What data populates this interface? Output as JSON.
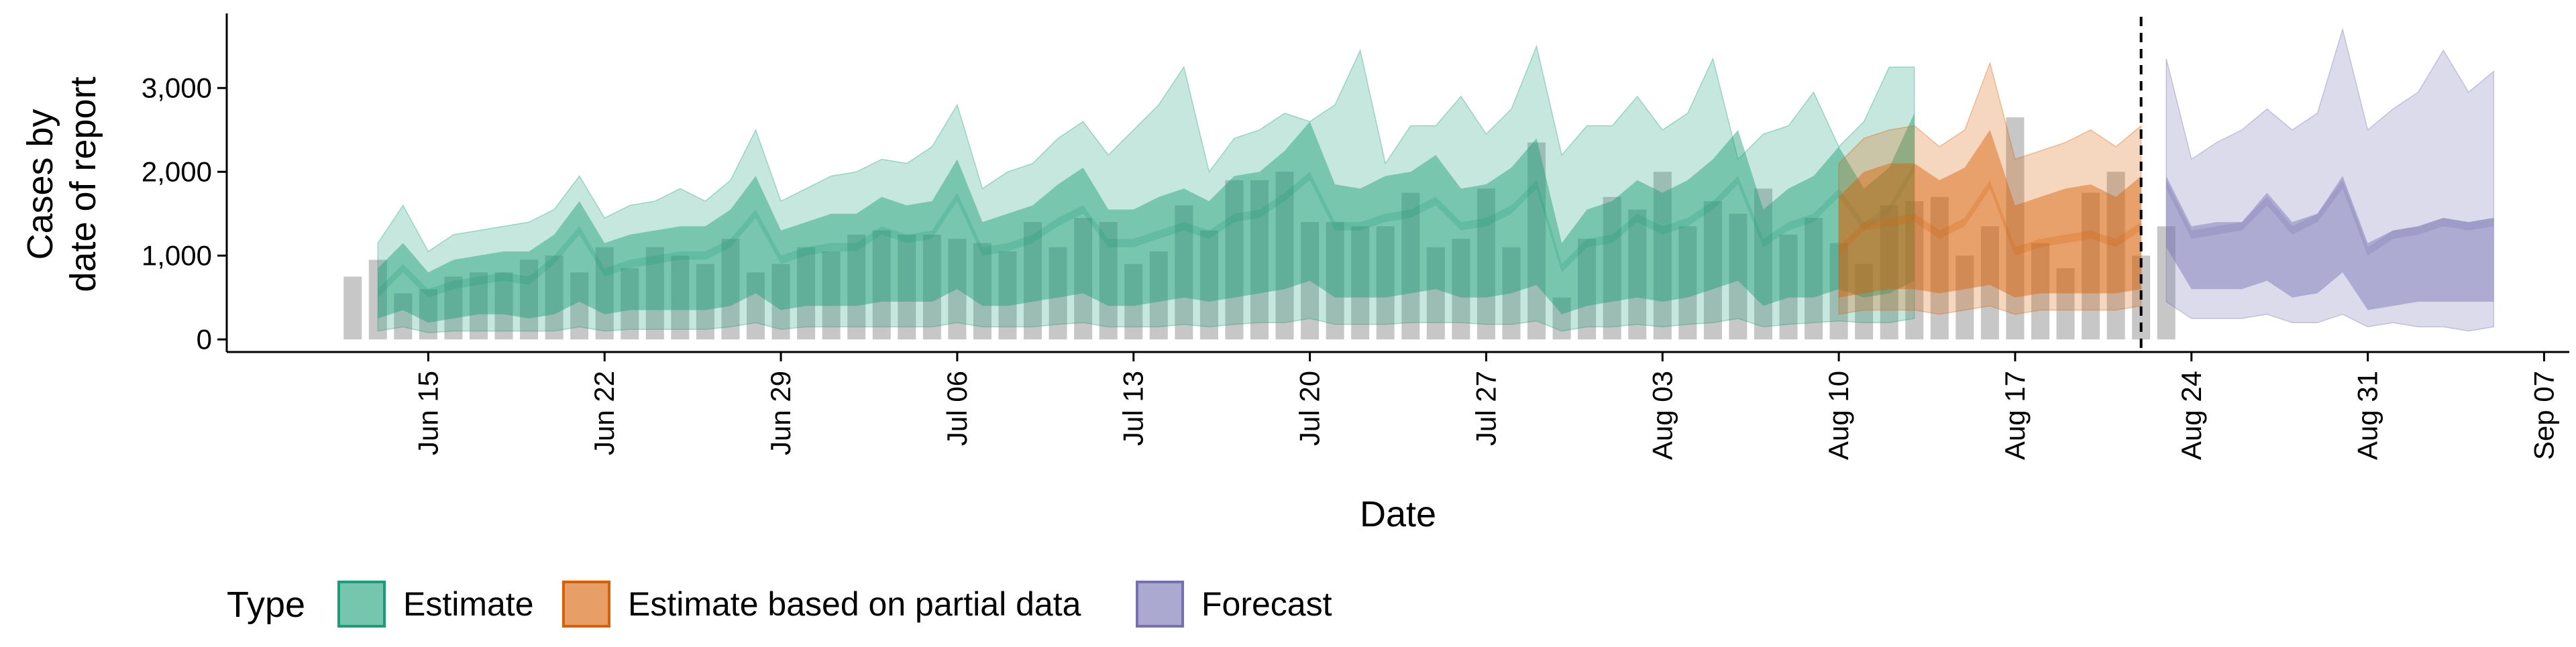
{
  "chart_data": {
    "type": "area",
    "xlabel": "Date",
    "ylabel_lines": [
      "Cases by",
      "date of report"
    ],
    "x_start": "2020-06-12",
    "y_ticks": [
      0,
      1000,
      2000,
      3000
    ],
    "y_tick_labels": [
      "0",
      "1,000",
      "2,000",
      "3,000"
    ],
    "ylim": [
      -150,
      3850
    ],
    "xlim": [
      "2020-06-07",
      "2020-09-08"
    ],
    "x_tick_labels": [
      "Jun 15",
      "Jun 22",
      "Jun 29",
      "Jul 06",
      "Jul 13",
      "Jul 20",
      "Jul 27",
      "Aug 03",
      "Aug 10",
      "Aug 17",
      "Aug 24",
      "Aug 31",
      "Sep 07"
    ],
    "x_tick_dates": [
      "2020-06-15",
      "2020-06-22",
      "2020-06-29",
      "2020-07-06",
      "2020-07-13",
      "2020-07-20",
      "2020-07-27",
      "2020-08-03",
      "2020-08-10",
      "2020-08-17",
      "2020-08-24",
      "2020-08-31",
      "2020-09-07"
    ],
    "vline_date": "2020-08-22",
    "bars": [
      750,
      950,
      550,
      600,
      750,
      800,
      800,
      950,
      1000,
      800,
      1100,
      850,
      1100,
      1000,
      900,
      1200,
      800,
      900,
      1100,
      1050,
      1250,
      1300,
      1250,
      1250,
      1200,
      1150,
      1050,
      1400,
      1100,
      1450,
      1400,
      900,
      1050,
      1600,
      1300,
      1900,
      1900,
      2000,
      1400,
      1400,
      1350,
      1350,
      1750,
      1100,
      1200,
      1800,
      1100,
      2350,
      500,
      1200,
      1700,
      1550,
      2000,
      1350,
      1650,
      1500,
      1800,
      1250,
      1450,
      1150,
      900,
      1600,
      1650,
      1700,
      1000,
      1350,
      2650,
      1150,
      850,
      1750,
      2000,
      1000,
      1350
    ],
    "series": [
      {
        "name": "Estimate",
        "color": "#1b9e77",
        "start": "2020-06-13",
        "median": [
          600,
          900,
          600,
          700,
          750,
          800,
          750,
          1000,
          1350,
          850,
          950,
          1000,
          1050,
          1050,
          1200,
          1550,
          1000,
          1100,
          1150,
          1150,
          1350,
          1250,
          1300,
          1750,
          1100,
          1150,
          1250,
          1450,
          1600,
          1200,
          1200,
          1300,
          1400,
          1300,
          1500,
          1550,
          1750,
          2000,
          1400,
          1400,
          1500,
          1550,
          1700,
          1400,
          1450,
          1600,
          1900,
          900,
          1200,
          1250,
          1500,
          1350,
          1450,
          1650,
          1950,
          1200,
          1400,
          1500,
          1800,
          1400,
          1600,
          2100
        ],
        "inner": [
          [
            250,
            850
          ],
          [
            350,
            1150
          ],
          [
            200,
            800
          ],
          [
            250,
            950
          ],
          [
            300,
            1000
          ],
          [
            300,
            1050
          ],
          [
            250,
            1050
          ],
          [
            300,
            1250
          ],
          [
            450,
            1650
          ],
          [
            300,
            1150
          ],
          [
            350,
            1250
          ],
          [
            350,
            1300
          ],
          [
            350,
            1350
          ],
          [
            350,
            1350
          ],
          [
            400,
            1550
          ],
          [
            550,
            1950
          ],
          [
            350,
            1300
          ],
          [
            400,
            1400
          ],
          [
            400,
            1500
          ],
          [
            400,
            1500
          ],
          [
            450,
            1700
          ],
          [
            450,
            1600
          ],
          [
            450,
            1650
          ],
          [
            600,
            2150
          ],
          [
            400,
            1400
          ],
          [
            400,
            1500
          ],
          [
            450,
            1600
          ],
          [
            500,
            1850
          ],
          [
            550,
            2050
          ],
          [
            400,
            1550
          ],
          [
            400,
            1550
          ],
          [
            450,
            1700
          ],
          [
            500,
            1800
          ],
          [
            450,
            1650
          ],
          [
            500,
            1950
          ],
          [
            550,
            2000
          ],
          [
            600,
            2250
          ],
          [
            700,
            2600
          ],
          [
            500,
            1850
          ],
          [
            500,
            1800
          ],
          [
            500,
            1950
          ],
          [
            550,
            2000
          ],
          [
            600,
            2200
          ],
          [
            500,
            1800
          ],
          [
            500,
            1850
          ],
          [
            550,
            2050
          ],
          [
            650,
            2400
          ],
          [
            300,
            1150
          ],
          [
            400,
            1550
          ],
          [
            450,
            1650
          ],
          [
            500,
            1900
          ],
          [
            450,
            1750
          ],
          [
            500,
            1900
          ],
          [
            600,
            2150
          ],
          [
            700,
            2500
          ],
          [
            400,
            1550
          ],
          [
            500,
            1800
          ],
          [
            500,
            1950
          ],
          [
            600,
            2300
          ],
          [
            500,
            1800
          ],
          [
            550,
            2050
          ],
          [
            700,
            2700
          ]
        ],
        "outer": [
          [
            100,
            1150
          ],
          [
            150,
            1600
          ],
          [
            80,
            1050
          ],
          [
            100,
            1250
          ],
          [
            100,
            1300
          ],
          [
            100,
            1350
          ],
          [
            100,
            1400
          ],
          [
            100,
            1550
          ],
          [
            150,
            1950
          ],
          [
            100,
            1450
          ],
          [
            120,
            1600
          ],
          [
            120,
            1650
          ],
          [
            120,
            1800
          ],
          [
            120,
            1650
          ],
          [
            150,
            1900
          ],
          [
            200,
            2500
          ],
          [
            120,
            1650
          ],
          [
            150,
            1800
          ],
          [
            150,
            1950
          ],
          [
            150,
            2000
          ],
          [
            150,
            2150
          ],
          [
            150,
            2100
          ],
          [
            150,
            2300
          ],
          [
            200,
            2800
          ],
          [
            150,
            1800
          ],
          [
            150,
            2000
          ],
          [
            150,
            2100
          ],
          [
            180,
            2400
          ],
          [
            200,
            2600
          ],
          [
            150,
            2200
          ],
          [
            150,
            2500
          ],
          [
            150,
            2800
          ],
          [
            180,
            3250
          ],
          [
            150,
            2000
          ],
          [
            180,
            2400
          ],
          [
            200,
            2500
          ],
          [
            200,
            2700
          ],
          [
            250,
            2600
          ],
          [
            180,
            2800
          ],
          [
            180,
            3450
          ],
          [
            180,
            2100
          ],
          [
            200,
            2550
          ],
          [
            200,
            2550
          ],
          [
            200,
            2900
          ],
          [
            180,
            2450
          ],
          [
            180,
            2750
          ],
          [
            220,
            3500
          ],
          [
            100,
            2200
          ],
          [
            150,
            2550
          ],
          [
            150,
            2550
          ],
          [
            180,
            2900
          ],
          [
            150,
            2500
          ],
          [
            180,
            2700
          ],
          [
            200,
            3350
          ],
          [
            250,
            2150
          ],
          [
            150,
            2450
          ],
          [
            180,
            2550
          ],
          [
            200,
            2950
          ],
          [
            220,
            2300
          ],
          [
            200,
            2600
          ],
          [
            200,
            3250
          ],
          [
            250,
            3250
          ]
        ]
      },
      {
        "name": "Estimate based on partial data",
        "color": "#d95f02",
        "start": "2020-08-10",
        "median": [
          1100,
          1400,
          1450,
          1500,
          1300,
          1450,
          1900,
          1100,
          1200,
          1250,
          1300,
          1200,
          1400
        ],
        "inner": [
          [
            500,
            1700
          ],
          [
            550,
            2000
          ],
          [
            600,
            2100
          ],
          [
            600,
            2100
          ],
          [
            550,
            1900
          ],
          [
            600,
            2050
          ],
          [
            650,
            2500
          ],
          [
            500,
            1600
          ],
          [
            550,
            1700
          ],
          [
            550,
            1800
          ],
          [
            550,
            1850
          ],
          [
            550,
            1700
          ],
          [
            600,
            1950
          ]
        ],
        "outer": [
          [
            300,
            2100
          ],
          [
            350,
            2400
          ],
          [
            350,
            2500
          ],
          [
            350,
            2550
          ],
          [
            300,
            2300
          ],
          [
            350,
            2500
          ],
          [
            400,
            3300
          ],
          [
            300,
            2150
          ],
          [
            350,
            2250
          ],
          [
            350,
            2350
          ],
          [
            350,
            2500
          ],
          [
            350,
            2300
          ],
          [
            400,
            2550
          ]
        ]
      },
      {
        "name": "Forecast",
        "color": "#7570b3",
        "start": "2020-08-23",
        "median": [
          1900,
          1300,
          1350,
          1400,
          1700,
          1350,
          1500,
          1900,
          1100,
          1300,
          1350,
          1450,
          1400,
          1450
        ],
        "inner": [
          [
            1100,
            1950
          ],
          [
            600,
            1350
          ],
          [
            600,
            1400
          ],
          [
            600,
            1400
          ],
          [
            700,
            1750
          ],
          [
            500,
            1400
          ],
          [
            550,
            1500
          ],
          [
            800,
            1950
          ],
          [
            350,
            1150
          ],
          [
            400,
            1300
          ],
          [
            450,
            1350
          ],
          [
            450,
            1450
          ],
          [
            450,
            1400
          ],
          [
            450,
            1450
          ]
        ],
        "outer": [
          [
            450,
            3350
          ],
          [
            250,
            2150
          ],
          [
            250,
            2350
          ],
          [
            250,
            2500
          ],
          [
            300,
            2750
          ],
          [
            200,
            2500
          ],
          [
            200,
            2700
          ],
          [
            300,
            3700
          ],
          [
            150,
            2500
          ],
          [
            200,
            2750
          ],
          [
            150,
            2950
          ],
          [
            150,
            3450
          ],
          [
            100,
            2950
          ],
          [
            150,
            3200
          ]
        ]
      }
    ],
    "legend": {
      "position": "bottom-left",
      "title": "Type",
      "items": [
        {
          "label": "Estimate",
          "color": "#1b9e77"
        },
        {
          "label": "Estimate based on partial data",
          "color": "#d95f02"
        },
        {
          "label": "Forecast",
          "color": "#7570b3"
        }
      ]
    },
    "bar_color": "#bdbdbd",
    "grid": false
  }
}
